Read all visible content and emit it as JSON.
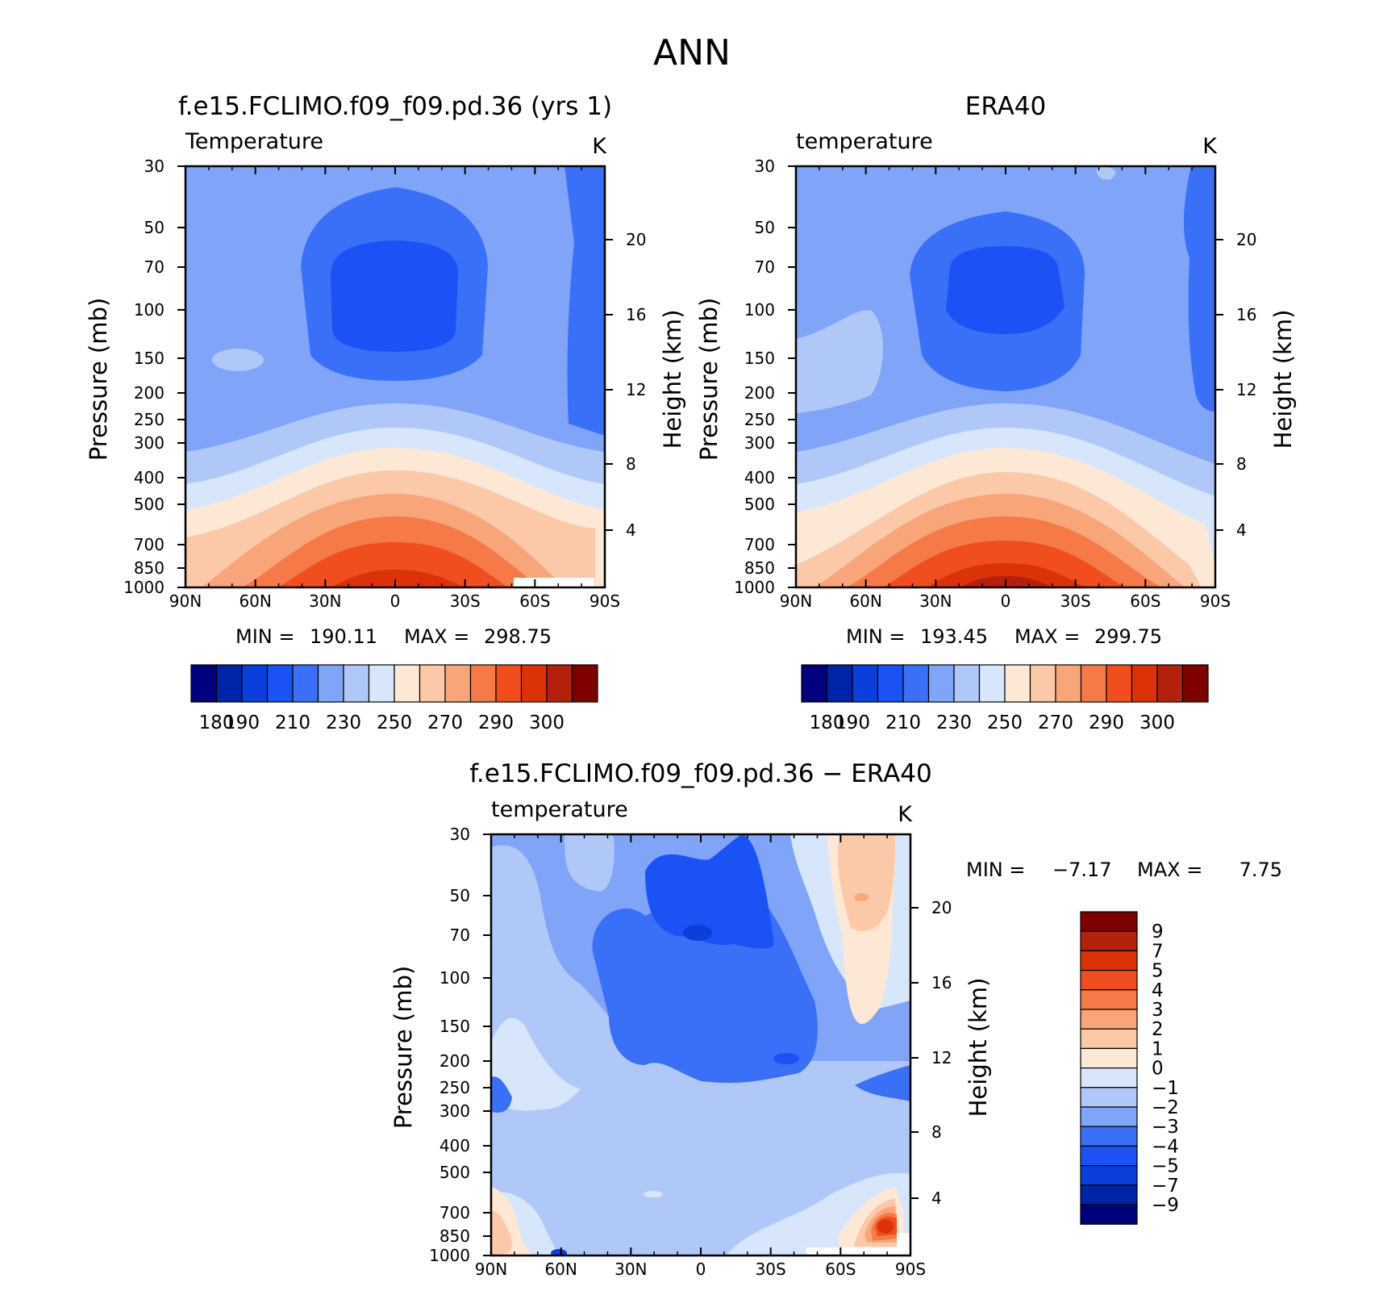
{
  "title": "ANN",
  "colors": {
    "palette": [
      "#00007f",
      "#0024a8",
      "#0a3fdc",
      "#1a52f5",
      "#3a6ff7",
      "#7fa4f8",
      "#b0c8f7",
      "#d8e6fb",
      "#fde8d5",
      "#fbc9a8",
      "#f9a57a",
      "#f67a48",
      "#f04f1d",
      "#dc3208",
      "#b3210a",
      "#7f0000"
    ]
  },
  "chart_data": [
    {
      "type": "contour",
      "panel": "model",
      "title": "f.e15.FCLIMO.f09_f09.pd.36 (yrs 1)",
      "variable": "Temperature",
      "units": "K",
      "xlabel": "",
      "ylabel": "Pressure (mb)",
      "y2label": "Height (km)",
      "x_ticks": [
        "90N",
        "60N",
        "30N",
        "0",
        "30S",
        "60S",
        "90S"
      ],
      "y_ticks": [
        "30",
        "50",
        "70",
        "100",
        "150",
        "200",
        "250",
        "300",
        "400",
        "500",
        "700",
        "850",
        "1000"
      ],
      "y2_ticks": [
        "20",
        "16",
        "12",
        "8",
        "4"
      ],
      "min_label": "MIN =",
      "min": "190.11",
      "max_label": "MAX =",
      "max": "298.75",
      "levels": [
        180,
        190,
        200,
        210,
        220,
        230,
        240,
        250,
        260,
        270,
        280,
        290,
        300
      ],
      "colorbar_labels": [
        "180",
        "190",
        "210",
        "230",
        "250",
        "270",
        "290",
        "300"
      ]
    },
    {
      "type": "contour",
      "panel": "obs",
      "title": "ERA40",
      "variable": "temperature",
      "units": "K",
      "ylabel": "Pressure (mb)",
      "y2label": "Height (km)",
      "x_ticks": [
        "90N",
        "60N",
        "30N",
        "0",
        "30S",
        "60S",
        "90S"
      ],
      "y_ticks": [
        "30",
        "50",
        "70",
        "100",
        "150",
        "200",
        "250",
        "300",
        "400",
        "500",
        "700",
        "850",
        "1000"
      ],
      "y2_ticks": [
        "20",
        "16",
        "12",
        "8",
        "4"
      ],
      "min_label": "MIN =",
      "min": "193.45",
      "max_label": "MAX =",
      "max": "299.75",
      "colorbar_labels": [
        "180",
        "190",
        "210",
        "230",
        "250",
        "270",
        "290",
        "300"
      ]
    },
    {
      "type": "contour",
      "panel": "diff",
      "title": "f.e15.FCLIMO.f09_f09.pd.36 − ERA40",
      "variable": "temperature",
      "units": "K",
      "ylabel": "Pressure (mb)",
      "y2label": "Height (km)",
      "x_ticks": [
        "90N",
        "60N",
        "30N",
        "0",
        "30S",
        "60S",
        "90S"
      ],
      "y_ticks": [
        "30",
        "50",
        "70",
        "100",
        "150",
        "200",
        "250",
        "300",
        "400",
        "500",
        "700",
        "850",
        "1000"
      ],
      "y2_ticks": [
        "20",
        "16",
        "12",
        "8",
        "4"
      ],
      "min_label": "MIN =",
      "min": "−7.17",
      "max_label": "MAX =",
      "max": "7.75",
      "colorbar_labels": [
        "9",
        "7",
        "5",
        "4",
        "3",
        "2",
        "1",
        "0",
        "−1",
        "−2",
        "−3",
        "−4",
        "−5",
        "−7",
        "−9"
      ]
    }
  ]
}
